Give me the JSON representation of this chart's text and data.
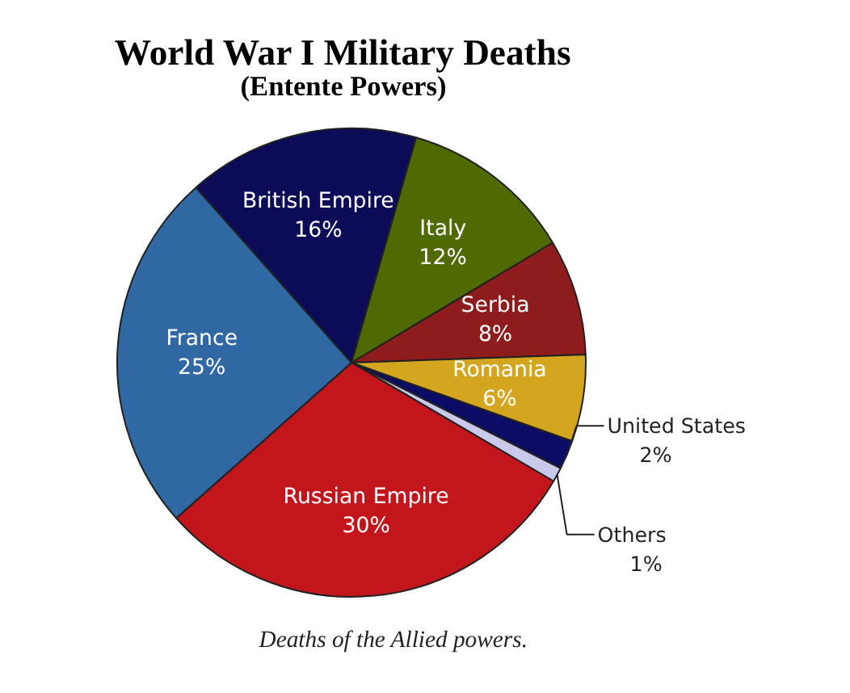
{
  "chart_data": {
    "type": "pie",
    "title": "World War I Military Deaths",
    "subtitle": "(Entente Powers)",
    "categories": [
      "Italy",
      "Serbia",
      "Romania",
      "United States",
      "Others",
      "Russian Empire",
      "France",
      "British Empire"
    ],
    "values": [
      12,
      8,
      6,
      2,
      1,
      30,
      25,
      16
    ],
    "value_labels": [
      "12%",
      "8%",
      "6%",
      "2%",
      "1%",
      "30%",
      "25%",
      "16%"
    ],
    "colors": [
      "#4f6a00",
      "#8e1c1c",
      "#d4a620",
      "#0c0c66",
      "#c9c9ec",
      "#c3161c",
      "#2f68a3",
      "#0b0b58"
    ],
    "data_labels": true,
    "annotations": [
      "Deaths of the Allied powers."
    ]
  }
}
